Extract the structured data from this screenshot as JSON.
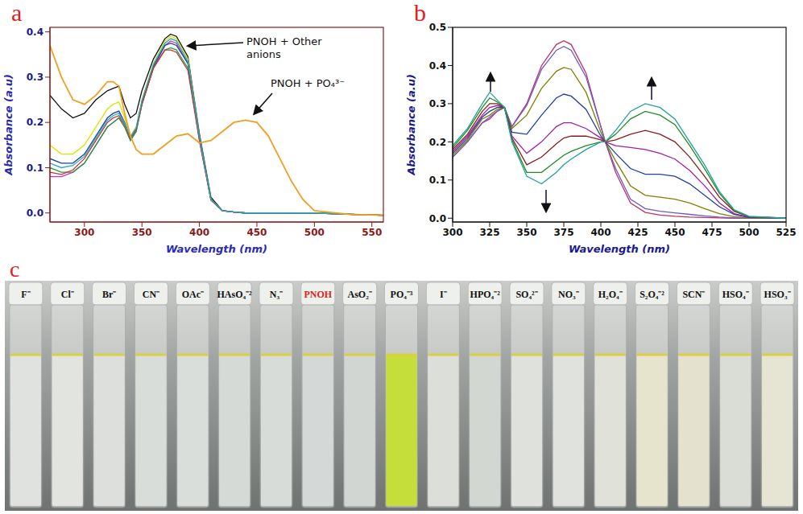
{
  "chart_data": [
    {
      "type": "line",
      "panel": "a",
      "x_label": "Wavelength (nm)",
      "y_label": "Absorbance (a.u)",
      "annotations": [
        "PNOH + Other anions",
        "PNOH + PO₄³⁻"
      ],
      "xlim": [
        270,
        560
      ],
      "xticks": [
        300,
        350,
        400,
        450,
        500,
        550
      ],
      "ylim": [
        -0.02,
        0.41
      ],
      "yticks": [
        {
          "value": 0,
          "label": "0.0"
        },
        0.1,
        0.2,
        0.3,
        0.4
      ],
      "x": [
        270,
        280,
        290,
        300,
        310,
        320,
        325,
        330,
        335,
        340,
        345,
        350,
        360,
        370,
        375,
        380,
        390,
        400,
        410,
        420,
        430,
        440,
        450,
        460,
        470,
        480,
        490,
        500,
        530,
        560
      ],
      "series": [
        {
          "color": "#111111",
          "values": [
            0.26,
            0.23,
            0.21,
            0.22,
            0.25,
            0.27,
            0.275,
            0.28,
            0.24,
            0.21,
            0.22,
            0.27,
            0.34,
            0.385,
            0.395,
            0.39,
            0.345,
            0.175,
            0.035,
            0.005,
            0.002,
            0,
            0,
            0,
            0,
            0,
            0,
            0,
            -0.003,
            -0.005
          ]
        },
        {
          "color": "#cc33cc",
          "values": [
            0.08,
            0.08,
            0.09,
            0.11,
            0.15,
            0.19,
            0.2,
            0.21,
            0.19,
            0.16,
            0.18,
            0.24,
            0.32,
            0.37,
            0.38,
            0.375,
            0.33,
            0.16,
            0.03,
            0.005,
            0.002,
            0,
            0,
            0,
            0,
            0,
            0,
            0,
            -0.003,
            -0.005
          ]
        },
        {
          "color": "#e0e000",
          "values": [
            0.15,
            0.13,
            0.13,
            0.15,
            0.19,
            0.23,
            0.24,
            0.245,
            0.21,
            0.17,
            0.19,
            0.25,
            0.33,
            0.38,
            0.39,
            0.385,
            0.34,
            0.17,
            0.03,
            0.005,
            0.002,
            0,
            0,
            0,
            0,
            0,
            0,
            0,
            -0.003,
            -0.005
          ]
        },
        {
          "color": "#20a040",
          "values": [
            0.1,
            0.09,
            0.09,
            0.11,
            0.15,
            0.19,
            0.2,
            0.21,
            0.19,
            0.16,
            0.18,
            0.24,
            0.32,
            0.36,
            0.365,
            0.36,
            0.32,
            0.165,
            0.03,
            0.005,
            0.002,
            0,
            0,
            0,
            0,
            0,
            0,
            0,
            -0.003,
            -0.005
          ]
        },
        {
          "color": "#1f3f9f",
          "values": [
            0.12,
            0.11,
            0.11,
            0.13,
            0.17,
            0.21,
            0.22,
            0.225,
            0.2,
            0.165,
            0.185,
            0.245,
            0.325,
            0.37,
            0.375,
            0.37,
            0.33,
            0.17,
            0.03,
            0.005,
            0.002,
            0,
            0,
            0,
            0,
            0,
            0,
            0,
            -0.003,
            -0.005
          ]
        },
        {
          "color": "#d03030",
          "values": [
            0.09,
            0.085,
            0.095,
            0.12,
            0.16,
            0.2,
            0.21,
            0.215,
            0.195,
            0.165,
            0.185,
            0.24,
            0.32,
            0.36,
            0.36,
            0.355,
            0.315,
            0.16,
            0.028,
            0.005,
            0.002,
            0,
            0,
            0,
            0,
            0,
            0,
            0,
            -0.003,
            -0.005
          ]
        },
        {
          "color": "#20b0c0",
          "values": [
            0.11,
            0.1,
            0.105,
            0.125,
            0.165,
            0.205,
            0.215,
            0.22,
            0.198,
            0.168,
            0.188,
            0.248,
            0.328,
            0.375,
            0.385,
            0.38,
            0.335,
            0.168,
            0.03,
            0.005,
            0.002,
            0,
            0,
            0,
            0,
            0,
            0,
            0,
            -0.003,
            -0.005
          ]
        },
        {
          "color": "#f0a020",
          "values": [
            0.37,
            0.3,
            0.25,
            0.24,
            0.26,
            0.29,
            0.29,
            0.28,
            0.22,
            0.17,
            0.14,
            0.13,
            0.13,
            0.15,
            0.16,
            0.17,
            0.175,
            0.155,
            0.16,
            0.18,
            0.2,
            0.205,
            0.2,
            0.17,
            0.12,
            0.07,
            0.03,
            0.005,
            -0.003,
            -0.005
          ]
        }
      ]
    },
    {
      "type": "line",
      "panel": "b",
      "x_label": "Wavelength (nm)",
      "y_label": "Absorbance (a.u)",
      "xlim": [
        300,
        525
      ],
      "xticks": [
        300,
        325,
        350,
        375,
        400,
        425,
        450,
        475,
        500,
        525
      ],
      "ylim": [
        -0.01,
        0.5
      ],
      "yticks": [
        {
          "value": 0,
          "label": "0.0"
        },
        0.1,
        0.2,
        0.3,
        0.4,
        0.5
      ],
      "x": [
        300,
        310,
        320,
        325,
        330,
        335,
        340,
        350,
        360,
        370,
        375,
        380,
        390,
        400,
        403,
        410,
        420,
        430,
        440,
        450,
        460,
        470,
        480,
        490,
        500,
        525
      ],
      "series": [
        {
          "color": "#c03060",
          "values": [
            0.16,
            0.2,
            0.25,
            0.26,
            0.28,
            0.29,
            0.24,
            0.3,
            0.4,
            0.455,
            0.465,
            0.455,
            0.38,
            0.24,
            0.2,
            0.12,
            0.04,
            0.015,
            0.008,
            0.005,
            0.003,
            0.002,
            0.001,
            0,
            0,
            0
          ]
        },
        {
          "color": "#6a5acd",
          "values": [
            0.16,
            0.2,
            0.25,
            0.265,
            0.28,
            0.29,
            0.24,
            0.295,
            0.39,
            0.44,
            0.45,
            0.44,
            0.37,
            0.24,
            0.2,
            0.13,
            0.05,
            0.025,
            0.018,
            0.014,
            0.01,
            0.006,
            0.003,
            0.001,
            0,
            0
          ]
        },
        {
          "color": "#808000",
          "values": [
            0.165,
            0.205,
            0.26,
            0.27,
            0.285,
            0.29,
            0.235,
            0.27,
            0.34,
            0.385,
            0.395,
            0.39,
            0.33,
            0.225,
            0.2,
            0.15,
            0.085,
            0.06,
            0.055,
            0.05,
            0.04,
            0.025,
            0.012,
            0.004,
            0.001,
            0
          ]
        },
        {
          "color": "#2040a0",
          "values": [
            0.17,
            0.21,
            0.265,
            0.28,
            0.29,
            0.29,
            0.225,
            0.22,
            0.27,
            0.315,
            0.325,
            0.32,
            0.285,
            0.215,
            0.2,
            0.17,
            0.13,
            0.115,
            0.115,
            0.11,
            0.09,
            0.06,
            0.03,
            0.01,
            0.002,
            0
          ]
        },
        {
          "color": "#a020a0",
          "values": [
            0.175,
            0.215,
            0.27,
            0.29,
            0.295,
            0.29,
            0.215,
            0.17,
            0.2,
            0.24,
            0.25,
            0.25,
            0.235,
            0.21,
            0.2,
            0.19,
            0.185,
            0.18,
            0.17,
            0.155,
            0.125,
            0.085,
            0.04,
            0.012,
            0.003,
            0
          ]
        },
        {
          "color": "#8b1a1a",
          "values": [
            0.18,
            0.22,
            0.28,
            0.3,
            0.3,
            0.29,
            0.21,
            0.14,
            0.16,
            0.195,
            0.21,
            0.215,
            0.215,
            0.205,
            0.2,
            0.205,
            0.22,
            0.23,
            0.22,
            0.2,
            0.16,
            0.11,
            0.055,
            0.018,
            0.004,
            0
          ]
        },
        {
          "color": "#228b22",
          "values": [
            0.185,
            0.23,
            0.29,
            0.315,
            0.305,
            0.29,
            0.205,
            0.12,
            0.12,
            0.15,
            0.165,
            0.175,
            0.19,
            0.2,
            0.2,
            0.22,
            0.26,
            0.28,
            0.27,
            0.245,
            0.19,
            0.13,
            0.065,
            0.02,
            0.004,
            0
          ]
        },
        {
          "color": "#20a0a0",
          "values": [
            0.19,
            0.235,
            0.3,
            0.33,
            0.31,
            0.29,
            0.2,
            0.11,
            0.09,
            0.12,
            0.14,
            0.155,
            0.18,
            0.2,
            0.2,
            0.23,
            0.28,
            0.3,
            0.29,
            0.26,
            0.2,
            0.14,
            0.07,
            0.022,
            0.005,
            0
          ]
        }
      ]
    }
  ],
  "photo": {
    "panel": "c",
    "vials": [
      {
        "label": "F⁻",
        "color": "#dfe2de"
      },
      {
        "label": "Cl⁻",
        "color": "#e2e4e0"
      },
      {
        "label": "Br⁻",
        "color": "#dcdfdc"
      },
      {
        "label": "CN⁻",
        "color": "#d9ddd9"
      },
      {
        "label": "OAc⁻",
        "color": "#dadeda"
      },
      {
        "label": "HAsO₄⁻²",
        "color": "#d6dad7"
      },
      {
        "label": "N₃⁻",
        "color": "#d8dcd9"
      },
      {
        "label": "PNOH",
        "color": "#d4d8d6",
        "label_color": "#e02020"
      },
      {
        "label": "AsO₂⁻",
        "color": "#d2d6d3"
      },
      {
        "label": "PO₄⁻³",
        "color": "#c6de3a"
      },
      {
        "label": "I⁻",
        "color": "#dcdfd9"
      },
      {
        "label": "HPO₄⁻²",
        "color": "#d3d7d2"
      },
      {
        "label": "SO₄²⁻",
        "color": "#dfe2dc"
      },
      {
        "label": "NO₃⁻",
        "color": "#e0e3dd"
      },
      {
        "label": "H₂O₄⁻",
        "color": "#e0e2da"
      },
      {
        "label": "S₂O₄⁻²",
        "color": "#e6e4cc"
      },
      {
        "label": "SCN⁻",
        "color": "#e4e2cf"
      },
      {
        "label": "HSO₄⁻",
        "color": "#dadcd6"
      },
      {
        "label": "HSO₃⁻",
        "color": "#e6e4d2"
      }
    ]
  }
}
